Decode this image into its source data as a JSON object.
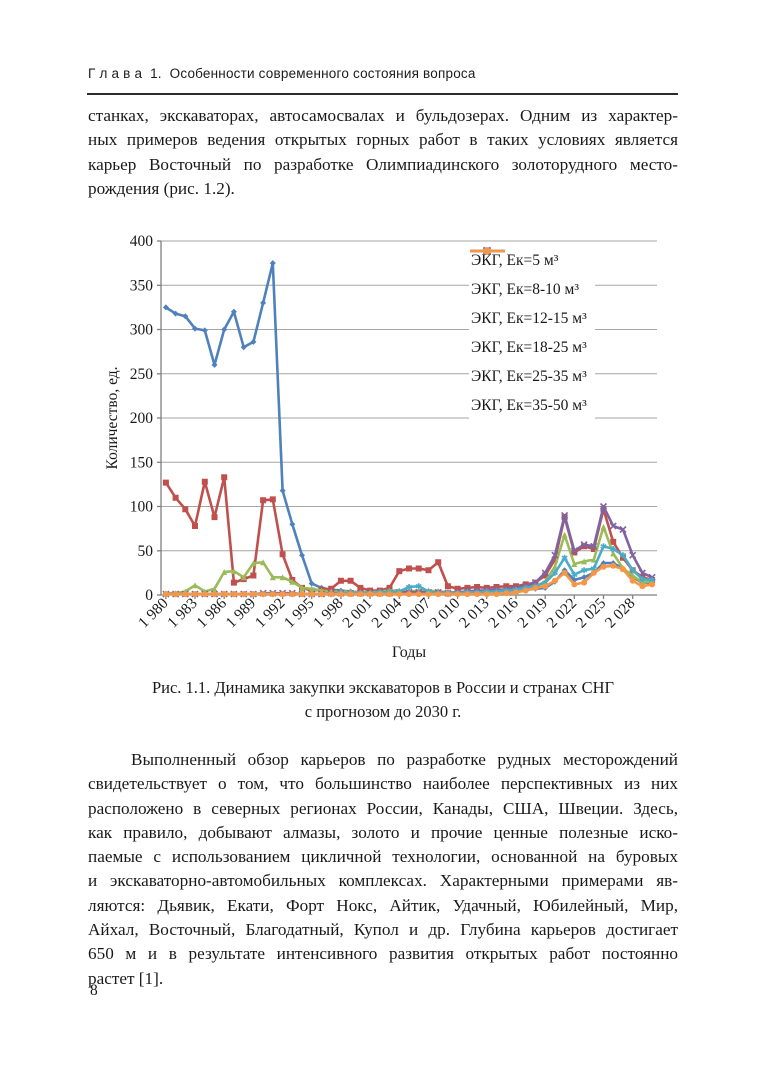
{
  "header": {
    "title": "Г л а в а  1.  Особенности современного состояния вопроса"
  },
  "paragraphs": {
    "p1": [
      "станках, экскаваторах, автосамосвалах и бульдозерах. Одним из характер-",
      "ных примеров ведения открытых горных работ в таких условиях является",
      "карьер Восточный по разработке Олимпиадинского золоторудного место-",
      "рождения (рис. 1.2)."
    ],
    "p2": [
      "Выполненный обзор карьеров по разработке рудных месторождений",
      "свидетельствует о том, что большинство наиболее перспективных из них",
      "расположено в северных регионах России, Канады, США, Швеции. Здесь,",
      "как правило, добывают алмазы, золото и прочие ценные полезные иско-",
      "паемые с использованием цикличной технологии, основанной на буровых",
      "и экскаваторно-автомобильных комплексах. Характерными примерами яв-",
      "ляются: Дьявик, Екати, Форт Нокс, Айтик, Удачный, Юбилейный, Мир,",
      "Айхал, Восточный, Благодатный, Купол и др. Глубина карьеров достигает",
      "650 м и в результате интенсивного развития открытых работ постоянно",
      "растет [1]."
    ]
  },
  "figure": {
    "caption_lines": [
      "Рис. 1.1. Динамика закупки экскаваторов в России и странах СНГ",
      "с прогнозом до 2030 г."
    ]
  },
  "footer": {
    "page_number": "8"
  },
  "chart_data": {
    "type": "line",
    "title": "",
    "xlabel": "Годы",
    "ylabel": "Количество, ед.",
    "ylim": [
      0,
      400
    ],
    "ytick_step": 50,
    "grid": true,
    "legend_position": "top-right-inside",
    "x_years_start": 1980,
    "x_years_end": 2030,
    "x_tick_every": 3,
    "x_tick_labels": [
      "1 980",
      "1 983",
      "1 986",
      "1 989",
      "1 992",
      "1 995",
      "1 998",
      "2 001",
      "2 004",
      "2 007",
      "2 010",
      "2 013",
      "2 016",
      "2 019",
      "2 022",
      "2 025",
      "2 028"
    ],
    "axis_color": "#7f7f7f",
    "grid_color": "#a6a6a6",
    "series": [
      {
        "name": "ЭКГ, Ек=5 м³",
        "color": "#4F81BD",
        "marker": "diamond",
        "values": [
          325,
          318,
          315,
          301,
          299,
          260,
          300,
          320,
          280,
          286,
          330,
          375,
          118,
          80,
          45,
          13,
          8,
          6,
          5,
          4,
          3,
          3,
          4,
          4,
          4,
          4,
          4,
          4,
          4,
          3,
          3,
          4,
          4,
          5,
          5,
          5,
          5,
          6,
          7,
          8,
          15,
          28,
          17,
          20,
          25,
          36,
          36,
          30,
          20,
          14,
          14
        ]
      },
      {
        "name": "ЭКГ, Ек=8-10 м³",
        "color": "#C0504D",
        "marker": "square",
        "values": [
          127,
          110,
          97,
          78,
          128,
          88,
          133,
          14,
          18,
          22,
          107,
          108,
          46,
          17,
          8,
          5,
          6,
          7,
          16,
          16,
          8,
          5,
          5,
          8,
          27,
          30,
          30,
          28,
          37,
          10,
          7,
          8,
          9,
          8,
          9,
          10,
          10,
          12,
          14,
          22,
          40,
          88,
          48,
          55,
          52,
          97,
          60,
          42,
          28,
          20,
          17
        ]
      },
      {
        "name": "ЭКГ, Ек=12-15 м³",
        "color": "#9BBB59",
        "marker": "triangle",
        "values": [
          2,
          2,
          4,
          11,
          4,
          7,
          26,
          27,
          20,
          36,
          37,
          20,
          20,
          15,
          8,
          7,
          5,
          4,
          4,
          4,
          3,
          3,
          4,
          5,
          5,
          4,
          5,
          5,
          4,
          3,
          3,
          4,
          4,
          5,
          5,
          5,
          6,
          8,
          10,
          15,
          32,
          68,
          35,
          38,
          40,
          77,
          47,
          30,
          22,
          14,
          16
        ]
      },
      {
        "name": "ЭКГ, Ек=18-25 м³",
        "color": "#8064A2",
        "marker": "x",
        "values": [
          1,
          1,
          1,
          1,
          1,
          1,
          1,
          1,
          1,
          1,
          2,
          2,
          2,
          2,
          1,
          1,
          1,
          2,
          2,
          2,
          2,
          2,
          2,
          2,
          3,
          3,
          3,
          3,
          3,
          2,
          3,
          4,
          5,
          5,
          6,
          6,
          8,
          10,
          14,
          25,
          45,
          90,
          50,
          57,
          55,
          100,
          78,
          74,
          45,
          25,
          20
        ]
      },
      {
        "name": "ЭКГ, Ек=25-35 м³",
        "color": "#4BACC6",
        "marker": "asterisk",
        "values": [
          1,
          1,
          1,
          1,
          1,
          1,
          1,
          1,
          1,
          1,
          1,
          1,
          1,
          1,
          1,
          1,
          1,
          1,
          2,
          2,
          2,
          2,
          3,
          3,
          4,
          9,
          10,
          4,
          2,
          2,
          2,
          3,
          3,
          4,
          4,
          5,
          6,
          8,
          10,
          14,
          25,
          42,
          23,
          28,
          30,
          55,
          52,
          45,
          28,
          18,
          17
        ]
      },
      {
        "name": "ЭКГ, Ек=35-50 м³",
        "color": "#F79646",
        "marker": "circle",
        "values": [
          1,
          1,
          1,
          1,
          1,
          1,
          1,
          1,
          1,
          1,
          1,
          1,
          1,
          1,
          1,
          1,
          1,
          1,
          1,
          1,
          1,
          1,
          1,
          1,
          1,
          1,
          1,
          1,
          1,
          1,
          1,
          1,
          1,
          1,
          1,
          2,
          3,
          5,
          8,
          10,
          16,
          25,
          12,
          14,
          25,
          32,
          33,
          29,
          16,
          10,
          12
        ]
      }
    ]
  }
}
